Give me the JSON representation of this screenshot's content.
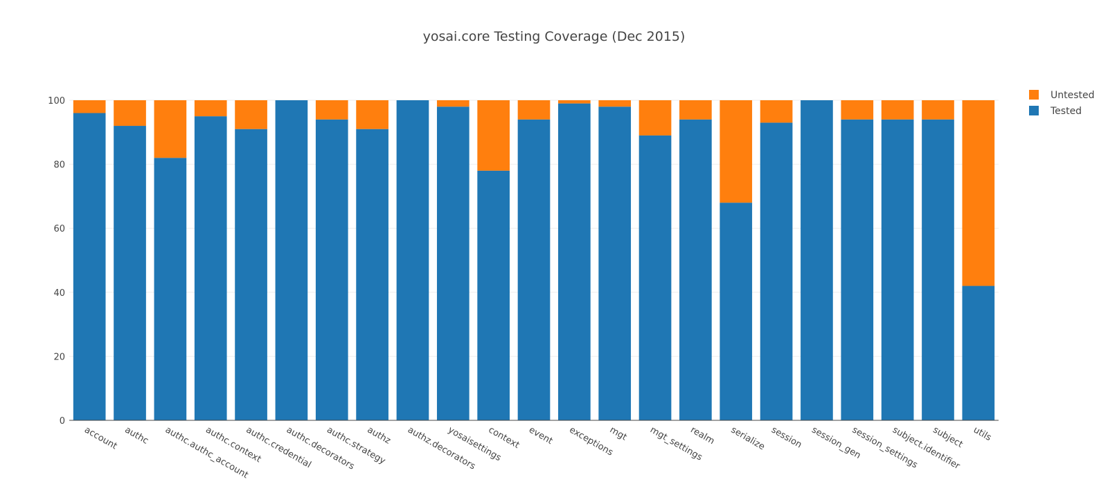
{
  "chart_data": {
    "type": "bar",
    "barmode": "stack",
    "title": "yosai.core Testing Coverage (Dec 2015)",
    "xlabel": "",
    "ylabel": "",
    "ylim": [
      0,
      100
    ],
    "yticks": [
      0,
      20,
      40,
      60,
      80,
      100
    ],
    "grid": true,
    "legend_position": "top-right",
    "categories": [
      "account",
      "authc",
      "authc.authc_account",
      "authc.context",
      "authc.credential",
      "authc.decorators",
      "authc.strategy",
      "authz",
      "authz.decorators",
      "yosaisettings",
      "context",
      "event",
      "exceptions",
      "mgt",
      "mgt_settings",
      "realm",
      "serialize",
      "session",
      "session_gen",
      "session_settings",
      "subject.identifier",
      "subject",
      "utils"
    ],
    "series": [
      {
        "name": "Tested",
        "color": "#1f77b4",
        "values": [
          96,
          92,
          82,
          95,
          91,
          100,
          94,
          91,
          100,
          98,
          78,
          94,
          99,
          98,
          89,
          94,
          68,
          93,
          100,
          94,
          94,
          94,
          42
        ]
      },
      {
        "name": "Untested",
        "color": "#ff7f0e",
        "values": [
          4,
          8,
          18,
          5,
          9,
          0,
          6,
          9,
          0,
          2,
          22,
          6,
          1,
          2,
          11,
          6,
          32,
          7,
          0,
          6,
          6,
          6,
          58
        ]
      }
    ],
    "legend": [
      "Untested",
      "Tested"
    ]
  }
}
